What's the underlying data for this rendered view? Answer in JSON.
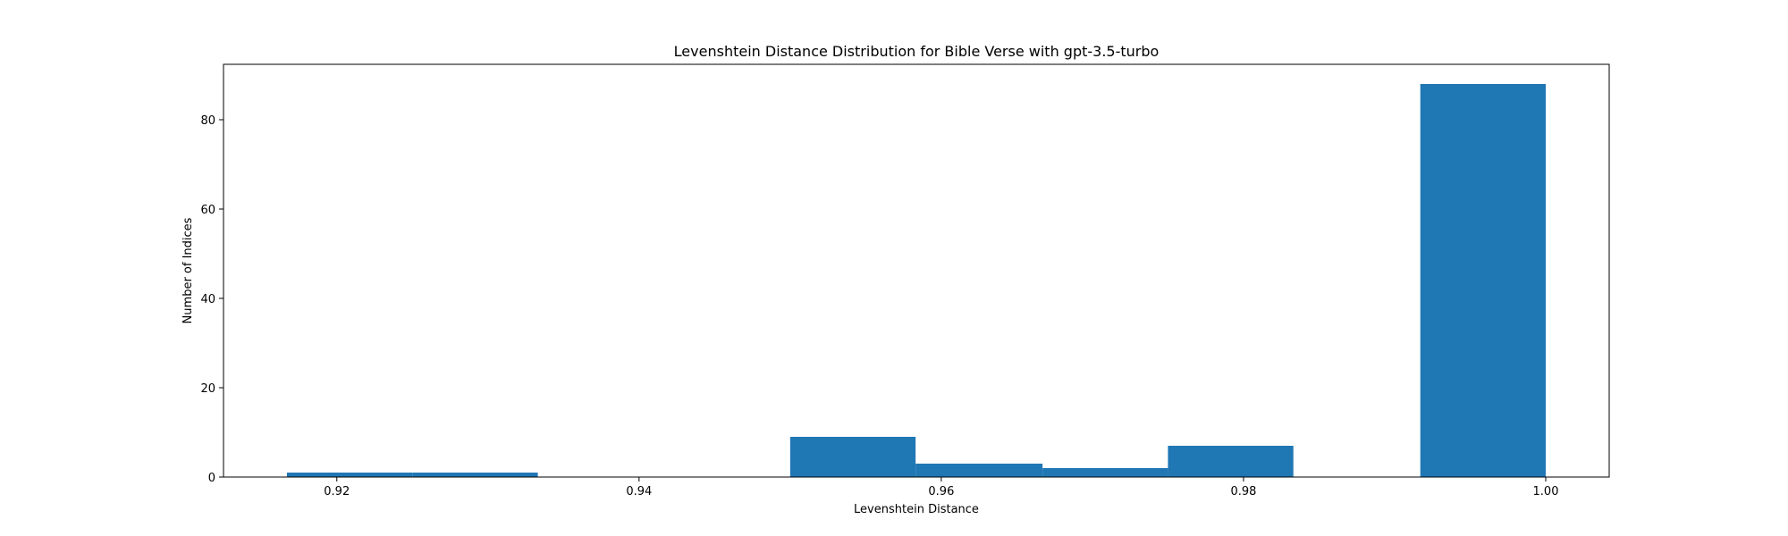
{
  "chart_data": {
    "type": "bar",
    "title": "Levenshtein Distance Distribution for Bible Verse with gpt-3.5-turbo",
    "xlabel": "Levenshtein Distance",
    "ylabel": "Number of Indices",
    "xlim": [
      0.9125,
      1.0042
    ],
    "ylim": [
      0,
      92.4
    ],
    "xticks": [
      0.92,
      0.94,
      0.96,
      0.98,
      1.0
    ],
    "xtick_labels": [
      "0.92",
      "0.94",
      "0.96",
      "0.98",
      "1.00"
    ],
    "yticks": [
      0,
      20,
      40,
      60,
      80
    ],
    "ytick_labels": [
      "0",
      "20",
      "40",
      "60",
      "80"
    ],
    "bar_color": "#1f77b4",
    "grid": false,
    "bins": [
      {
        "x0": 0.9167,
        "x1": 0.925,
        "value": 1
      },
      {
        "x0": 0.925,
        "x1": 0.9333,
        "value": 1
      },
      {
        "x0": 0.9333,
        "x1": 0.9417,
        "value": 0
      },
      {
        "x0": 0.9417,
        "x1": 0.95,
        "value": 0
      },
      {
        "x0": 0.95,
        "x1": 0.9583,
        "value": 9
      },
      {
        "x0": 0.9583,
        "x1": 0.9667,
        "value": 3
      },
      {
        "x0": 0.9667,
        "x1": 0.975,
        "value": 2
      },
      {
        "x0": 0.975,
        "x1": 0.9833,
        "value": 7
      },
      {
        "x0": 0.9833,
        "x1": 0.9917,
        "value": 0
      },
      {
        "x0": 0.9917,
        "x1": 1.0,
        "value": 88
      }
    ]
  }
}
